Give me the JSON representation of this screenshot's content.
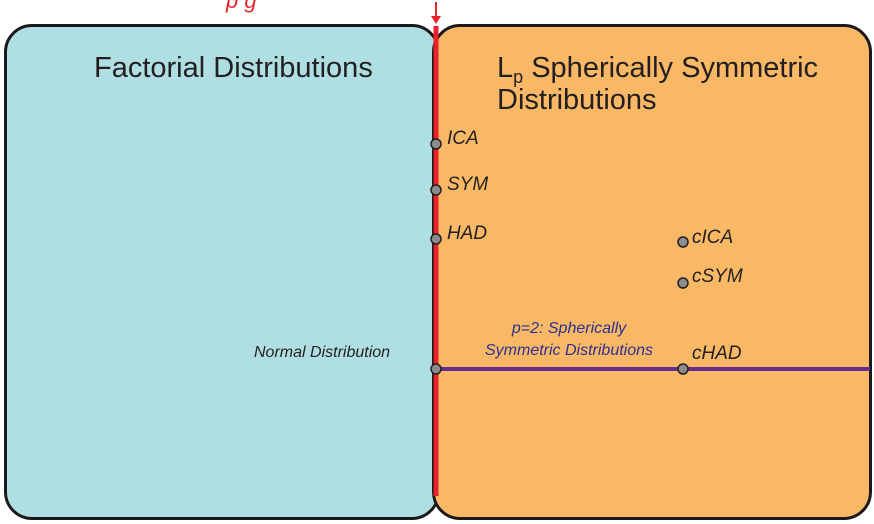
{
  "top_partial_label": "p g",
  "left_box": {
    "title": "Factorial Distributions"
  },
  "right_box": {
    "title_main": "L",
    "title_sub": "p",
    "title_rest": " Spherically Symmetric",
    "title_line2": "Distributions"
  },
  "points": {
    "ica": "ICA",
    "sym": "SYM",
    "had": "HAD",
    "cica": "cICA",
    "csym": "cSYM",
    "chad": "cHAD",
    "normal": "Normal Distribution"
  },
  "spherical_line_label": {
    "line1": "p=2: Spherically",
    "line2": "Symmetric Distributions"
  },
  "colors": {
    "left_fill": "#b0dfe3",
    "right_fill": "#f8b865",
    "boundary_line": "#e8222a",
    "spherical_line": "#662d91",
    "point_fill": "#8c8c8c",
    "label_blue": "#2e3192"
  }
}
